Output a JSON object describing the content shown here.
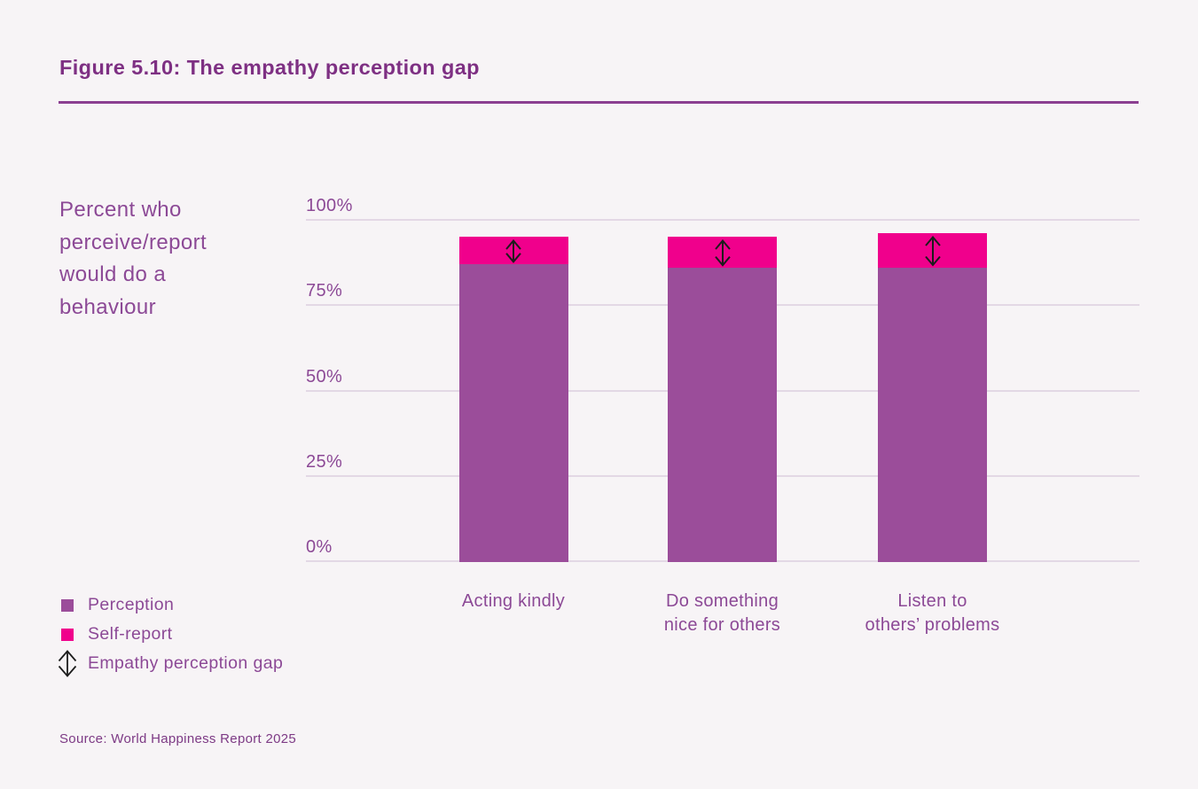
{
  "header": {
    "title": "Figure 5.10: The empathy perception gap"
  },
  "y_axis_caption": {
    "lines": [
      "Percent who",
      "perceive/report",
      "would do a",
      "behaviour"
    ]
  },
  "legend": {
    "items": [
      {
        "label": "Perception",
        "marker": "purple-square",
        "color": "#9b4d9a"
      },
      {
        "label": "Self-report",
        "marker": "pink-square",
        "color": "#f0008c"
      },
      {
        "label": "Empathy perception gap",
        "marker": "double-arrow",
        "color": "#1c1c1c"
      }
    ]
  },
  "source": {
    "text": "Source: World Happiness Report 2025"
  },
  "colors": {
    "background": "#f7f4f6",
    "title": "#7e3083",
    "rule": "#8b3f91",
    "text": "#8c4996",
    "perception_bar": "#9b4d9a",
    "self_report_bar": "#f0008c",
    "gridline": "#e3d8e5",
    "arrow": "#1c1c1c"
  },
  "chart_data": {
    "type": "bar",
    "subtype": "overlaid-columns-with-gap-arrows",
    "title": "Figure 5.10: The empathy perception gap",
    "ylabel": "Percent who perceive/report would do a behaviour",
    "xlabel": "",
    "ylim": [
      0,
      100
    ],
    "y_ticks": [
      {
        "value": 100,
        "label": "100%"
      },
      {
        "value": 75,
        "label": "75%"
      },
      {
        "value": 50,
        "label": "50%"
      },
      {
        "value": 25,
        "label": "25%"
      },
      {
        "value": 0,
        "label": "0%"
      }
    ],
    "grid": true,
    "legend_position": "bottom-left",
    "categories": [
      "Acting kindly",
      "Do something nice for others",
      "Listen to others’ problems"
    ],
    "categories_display": [
      [
        "Acting kindly"
      ],
      [
        "Do something",
        "nice for others"
      ],
      [
        "Listen to",
        "others’ problems"
      ]
    ],
    "series": [
      {
        "name": "Perception",
        "values": [
          87,
          86,
          86
        ],
        "color": "#9b4d9a"
      },
      {
        "name": "Self-report",
        "values": [
          95,
          95,
          96
        ],
        "color": "#f0008c"
      }
    ],
    "gap_annotation": {
      "name": "Empathy perception gap",
      "values": [
        8,
        9,
        10
      ],
      "description": "double-headed arrow spanning the difference between self-report and perception"
    }
  }
}
